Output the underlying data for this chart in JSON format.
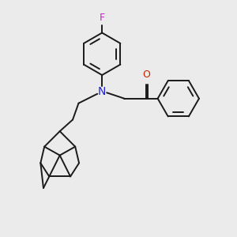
{
  "bg_color": "#ebebeb",
  "line_color": "#1a1a1a",
  "nitrogen_color": "#2222cc",
  "oxygen_color": "#cc2200",
  "fluorine_color": "#cc22cc",
  "lw": 1.4,
  "fig_w": 3.0,
  "fig_h": 3.0,
  "dpi": 100,
  "xlim": [
    0,
    10
  ],
  "ylim": [
    0,
    10
  ]
}
